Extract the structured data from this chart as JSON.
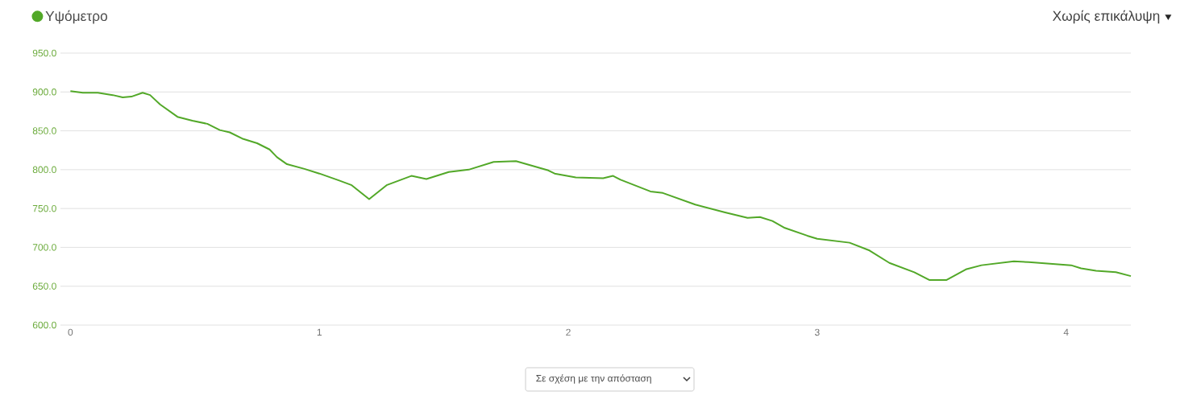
{
  "chart_data": {
    "type": "line",
    "legend": "top left",
    "grid": "y",
    "marker": "none",
    "line_style": "solid",
    "annotations": [
      "Χωρίς επικάλυψη",
      "Σε σχέση με την απόσταση"
    ],
    "xlim": [
      -0.04,
      4.26
    ],
    "xticks": [
      0,
      1,
      2,
      3,
      4
    ],
    "ylim": [
      600,
      950
    ],
    "yticks": [
      {
        "value": 600,
        "label": "600.0"
      },
      {
        "value": 650,
        "label": "650.0"
      },
      {
        "value": 700,
        "label": "700.0"
      },
      {
        "value": 750,
        "label": "750.0"
      },
      {
        "value": 800,
        "label": "800.0"
      },
      {
        "value": 850,
        "label": "850.0"
      },
      {
        "value": 900,
        "label": "900.0"
      },
      {
        "value": 950,
        "label": "950.0"
      }
    ],
    "series": [
      {
        "name": "Υψόμετρο",
        "color": "#52a828",
        "x": [
          0,
          0.05,
          0.11,
          0.17,
          0.21,
          0.245,
          0.29,
          0.32,
          0.36,
          0.43,
          0.49,
          0.55,
          0.6,
          0.64,
          0.69,
          0.75,
          0.8,
          0.83,
          0.87,
          0.94,
          1.0,
          1.08,
          1.13,
          1.2,
          1.27,
          1.37,
          1.43,
          1.52,
          1.6,
          1.7,
          1.79,
          1.92,
          1.945,
          2.03,
          2.14,
          2.18,
          2.21,
          2.33,
          2.38,
          2.51,
          2.63,
          2.72,
          2.77,
          2.82,
          2.87,
          2.96,
          3.0,
          3.13,
          3.21,
          3.29,
          3.39,
          3.45,
          3.52,
          3.6,
          3.66,
          3.79,
          3.85,
          4.02,
          4.06,
          4.12,
          4.2,
          4.26
        ],
        "values": [
          901,
          899,
          899,
          896,
          893,
          894,
          899,
          896,
          884,
          868,
          863,
          859,
          851,
          848,
          840,
          834,
          826,
          816,
          807,
          801,
          795,
          786,
          780,
          762,
          780,
          792,
          788,
          797,
          800,
          810,
          811,
          799,
          795,
          790,
          789,
          792,
          787,
          772,
          770,
          755,
          745,
          738,
          739,
          734,
          725,
          715,
          711,
          706,
          696,
          680,
          668,
          658,
          658,
          672,
          677,
          682,
          681,
          677,
          673,
          670,
          668,
          663
        ]
      }
    ]
  }
}
